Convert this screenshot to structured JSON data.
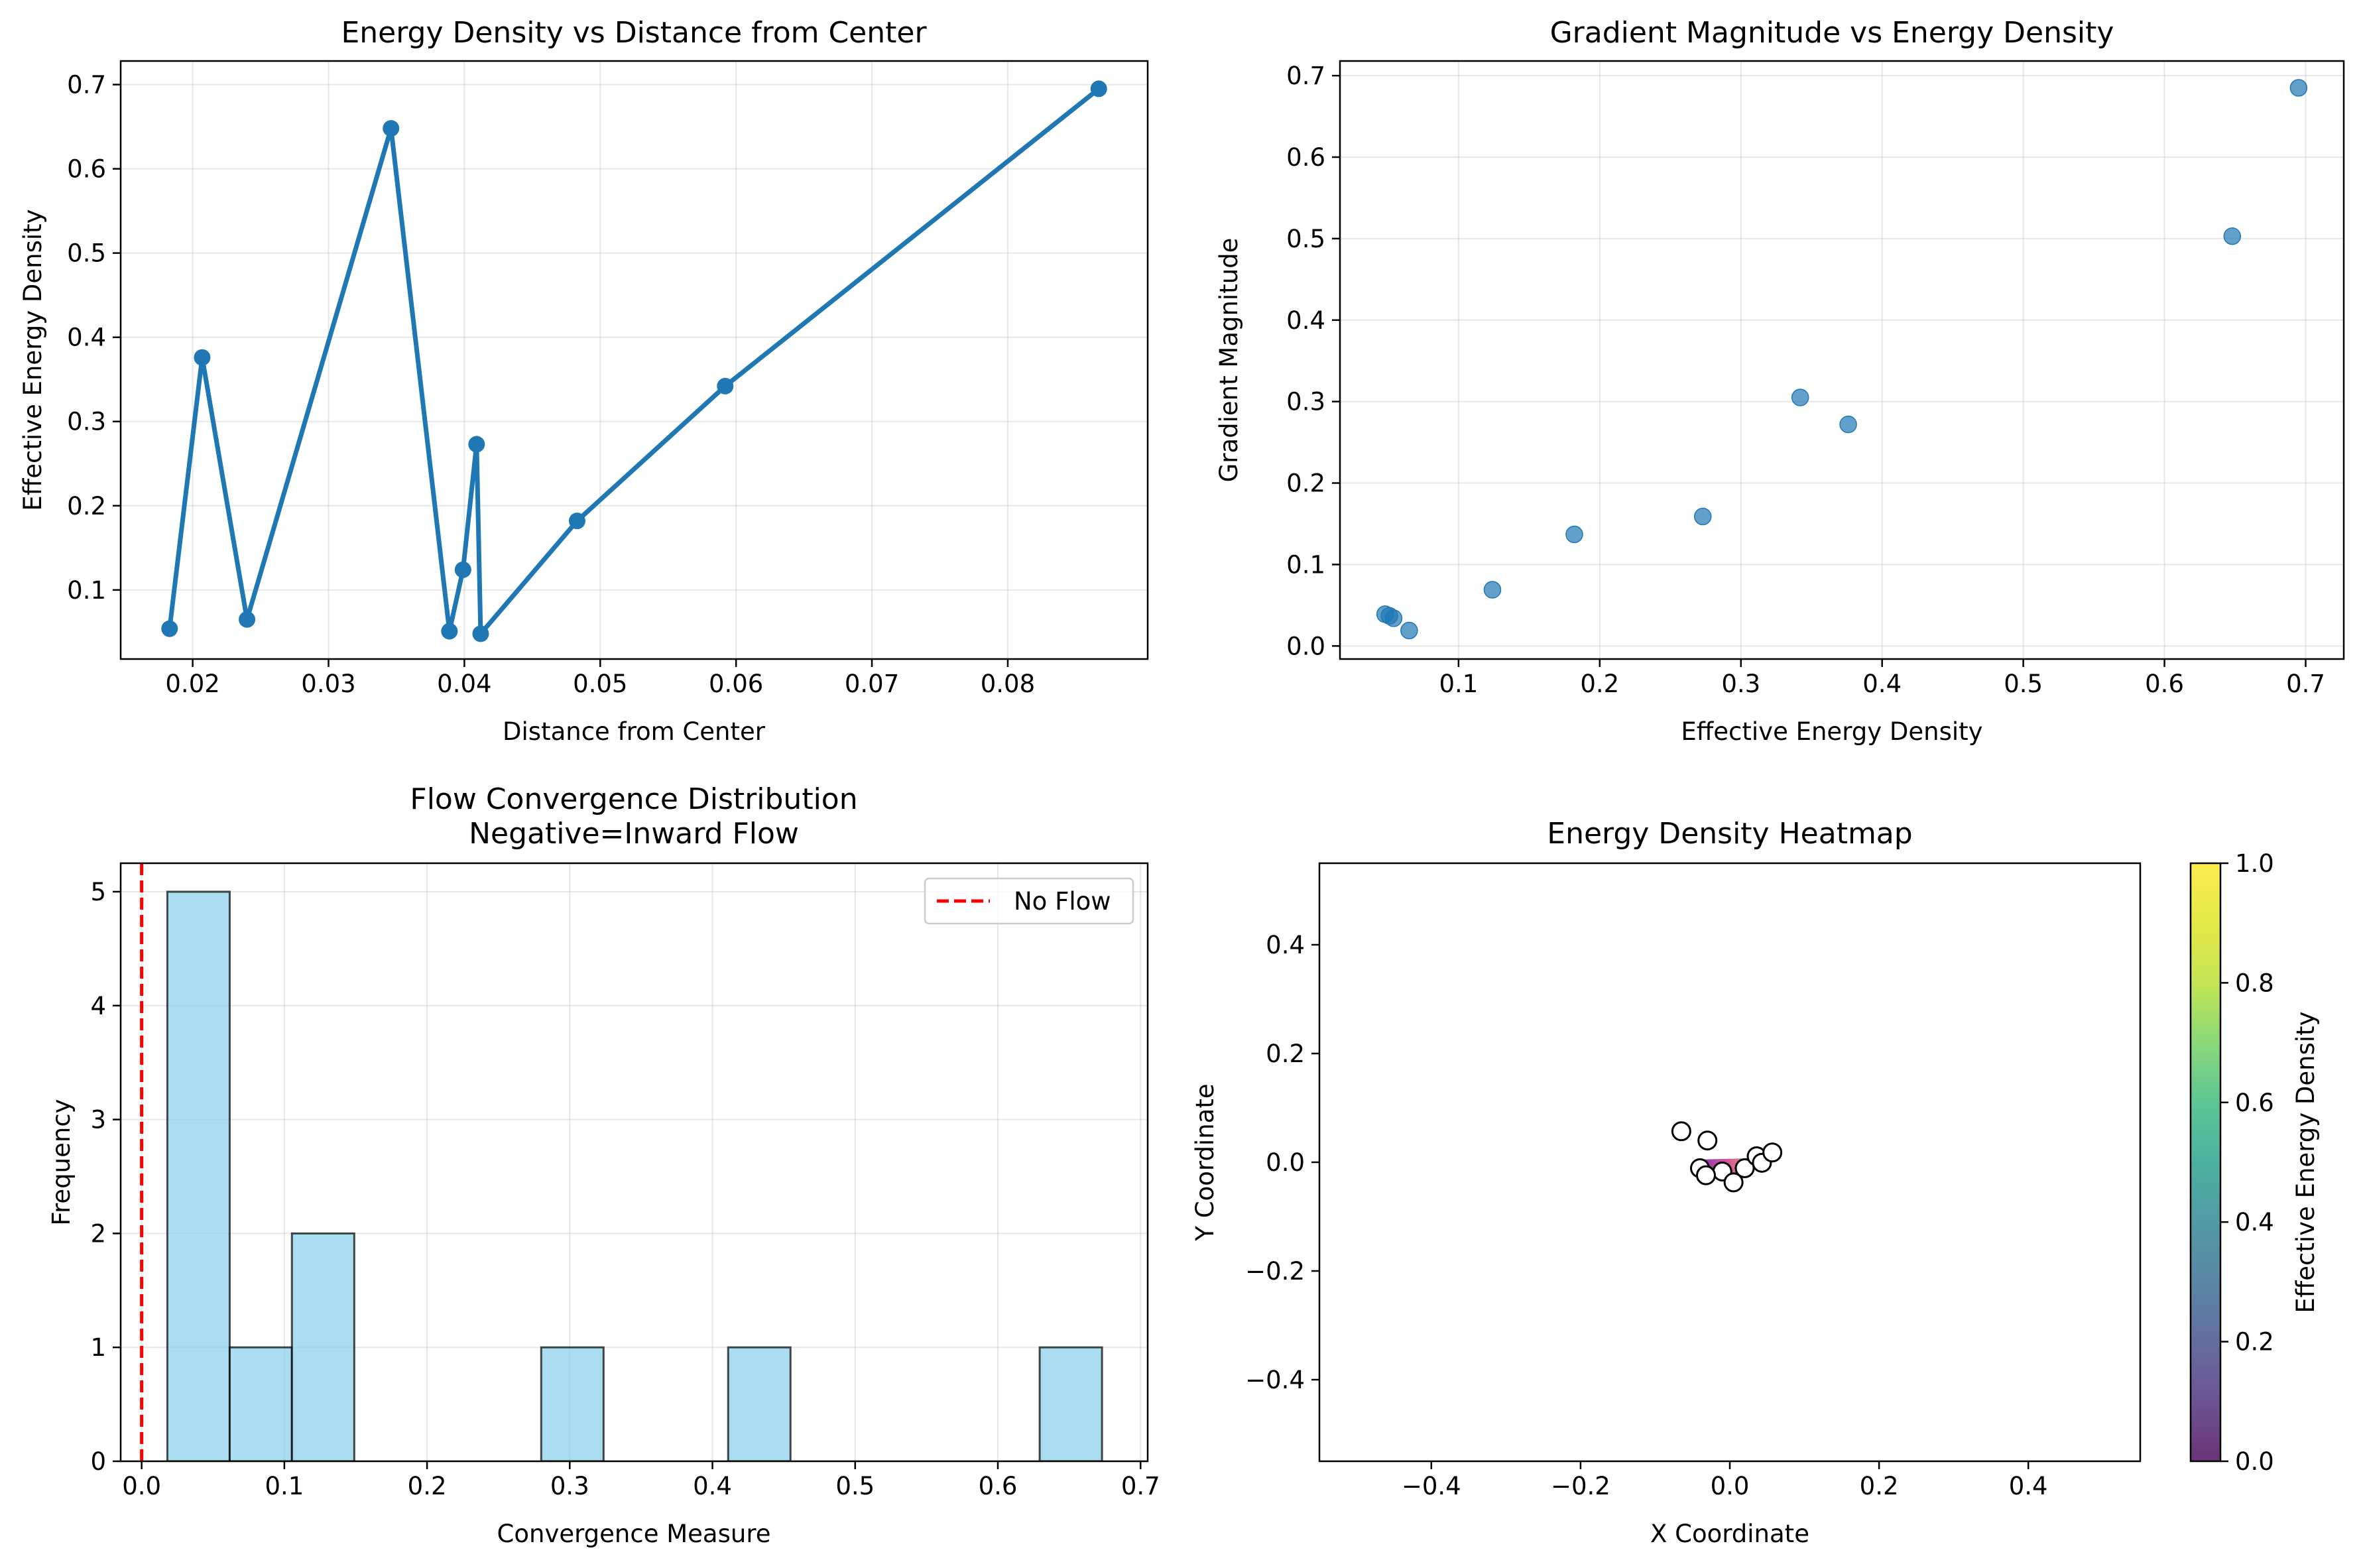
{
  "chart_data": [
    {
      "type": "line",
      "title": "Energy Density vs Distance from Center",
      "xlabel": "Distance from Center",
      "ylabel": "Effective Energy Density",
      "xlim": [
        0.0147,
        0.0903
      ],
      "ylim": [
        0.018,
        0.728
      ],
      "xticks": [
        0.02,
        0.03,
        0.04,
        0.05,
        0.06,
        0.07,
        0.08
      ],
      "xtick_labels": [
        "0.02",
        "0.03",
        "0.04",
        "0.05",
        "0.06",
        "0.07",
        "0.08"
      ],
      "yticks": [
        0.1,
        0.2,
        0.3,
        0.4,
        0.5,
        0.6,
        0.7
      ],
      "ytick_labels": [
        "0.1",
        "0.2",
        "0.3",
        "0.4",
        "0.5",
        "0.6",
        "0.7"
      ],
      "grid": true,
      "color": "#1f77b4",
      "series": [
        {
          "x": [
            0.0183,
            0.0207,
            0.024,
            0.0346,
            0.0389,
            0.0399,
            0.0409,
            0.0412,
            0.0483,
            0.0592,
            0.0867
          ],
          "y": [
            0.054,
            0.376,
            0.065,
            0.648,
            0.051,
            0.124,
            0.273,
            0.048,
            0.182,
            0.342,
            0.695
          ]
        }
      ]
    },
    {
      "type": "scatter",
      "title": "Gradient Magnitude vs Energy Density",
      "xlabel": "Effective Energy Density",
      "ylabel": "Gradient Magnitude",
      "xlim": [
        0.016,
        0.727
      ],
      "ylim": [
        -0.016,
        0.718
      ],
      "xticks": [
        0.1,
        0.2,
        0.3,
        0.4,
        0.5,
        0.6,
        0.7
      ],
      "xtick_labels": [
        "0.1",
        "0.2",
        "0.3",
        "0.4",
        "0.5",
        "0.6",
        "0.7"
      ],
      "yticks": [
        0.0,
        0.1,
        0.2,
        0.3,
        0.4,
        0.5,
        0.6,
        0.7
      ],
      "ytick_labels": [
        "0.0",
        "0.1",
        "0.2",
        "0.3",
        "0.4",
        "0.5",
        "0.6",
        "0.7"
      ],
      "grid": true,
      "color": "#1f77b4",
      "series": [
        {
          "x": [
            0.048,
            0.051,
            0.054,
            0.065,
            0.124,
            0.182,
            0.273,
            0.342,
            0.376,
            0.648,
            0.695
          ],
          "y": [
            0.039,
            0.037,
            0.034,
            0.019,
            0.069,
            0.137,
            0.159,
            0.305,
            0.272,
            0.503,
            0.685
          ]
        }
      ]
    },
    {
      "type": "bar",
      "title": "Flow Convergence Distribution\nNegative=Inward Flow",
      "xlabel": "Convergence Measure",
      "ylabel": "Frequency",
      "xlim": [
        -0.0147,
        0.705
      ],
      "ylim": [
        0,
        5.25
      ],
      "xticks": [
        0.0,
        0.1,
        0.2,
        0.3,
        0.4,
        0.5,
        0.6,
        0.7
      ],
      "xtick_labels": [
        "0.0",
        "0.1",
        "0.2",
        "0.3",
        "0.4",
        "0.5",
        "0.6",
        "0.7"
      ],
      "yticks": [
        0,
        1,
        2,
        3,
        4,
        5
      ],
      "ytick_labels": [
        "0",
        "1",
        "2",
        "3",
        "4",
        "5"
      ],
      "grid": true,
      "bar_color": "#87ceeb",
      "bar_edge": "#000000",
      "bin_edges": [
        0.018,
        0.0617,
        0.1053,
        0.149,
        0.1927,
        0.2363,
        0.28,
        0.3237,
        0.3673,
        0.411,
        0.4547,
        0.4983,
        0.542,
        0.5857,
        0.6293,
        0.673
      ],
      "values": [
        5,
        1,
        2,
        0,
        0,
        0,
        1,
        0,
        0,
        1,
        0,
        0,
        0,
        0,
        1
      ],
      "reference_line": {
        "x": 0.0,
        "color": "#ff0000",
        "label": "No Flow"
      },
      "legend": {
        "placement": "upper right",
        "entries": [
          "No Flow"
        ]
      }
    },
    {
      "type": "heatmap",
      "title": "Energy Density Heatmap",
      "xlabel": "X Coordinate",
      "ylabel": "Y Coordinate",
      "xlim": [
        -0.55,
        0.55
      ],
      "ylim": [
        -0.55,
        0.55
      ],
      "xticks": [
        -0.4,
        -0.2,
        0.0,
        0.2,
        0.4
      ],
      "xtick_labels": [
        "−0.4",
        "−0.2",
        "0.0",
        "0.2",
        "0.4"
      ],
      "yticks": [
        -0.4,
        -0.2,
        0.0,
        0.2,
        0.4
      ],
      "ytick_labels": [
        "−0.4",
        "−0.2",
        "0.0",
        "0.2",
        "0.4"
      ],
      "grid": false,
      "colorbar": {
        "label": "Effective Energy Density",
        "range": [
          0,
          1
        ],
        "ticks": [
          0.0,
          0.2,
          0.4,
          0.6,
          0.8,
          1.0
        ],
        "tick_labels": [
          "0.0",
          "0.2",
          "0.4",
          "0.6",
          "0.8",
          "1.0"
        ],
        "colormap": "viridis"
      },
      "points": {
        "x": [
          -0.065,
          -0.03,
          -0.04,
          -0.01,
          0.005,
          0.02,
          -0.032,
          0.036,
          0.043,
          0.057
        ],
        "y": [
          0.057,
          0.04,
          -0.011,
          -0.017,
          -0.037,
          -0.011,
          -0.024,
          0.011,
          -0.001,
          0.018
        ],
        "face": "#ffffff",
        "edge": "#000000"
      }
    }
  ]
}
